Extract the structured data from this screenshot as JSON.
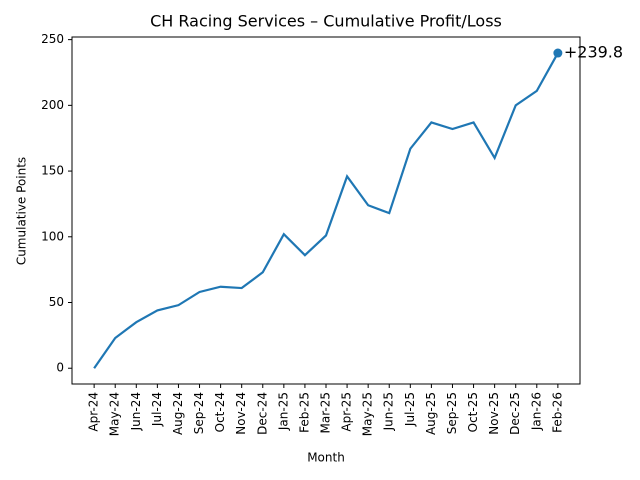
{
  "chart_data": {
    "type": "line",
    "title": "CH Racing Services – Cumulative Profit/Loss",
    "x_label": "Month",
    "y_label": "Cumulative Points",
    "categories": [
      "Apr-24",
      "May-24",
      "Jun-24",
      "Jul-24",
      "Aug-24",
      "Sep-24",
      "Oct-24",
      "Nov-24",
      "Dec-24",
      "Jan-25",
      "Feb-25",
      "Mar-25",
      "Apr-25",
      "May-25",
      "Jun-25",
      "Jul-25",
      "Aug-25",
      "Sep-25",
      "Oct-25",
      "Nov-25",
      "Dec-25",
      "Jan-26",
      "Feb-26"
    ],
    "values": [
      0,
      23,
      35,
      44,
      48,
      58,
      62,
      61,
      73,
      102,
      86,
      101,
      146,
      124,
      118,
      167,
      187,
      182,
      187,
      160,
      200,
      211,
      239.8
    ],
    "value_labels": [
      null,
      null,
      null,
      null,
      null,
      null,
      null,
      null,
      null,
      null,
      null,
      null,
      null,
      null,
      null,
      null,
      null,
      null,
      null,
      null,
      null,
      null,
      "+239.8"
    ],
    "color": "#1f77b4",
    "ylim": [
      -12,
      252
    ],
    "yticks": [
      0,
      50,
      100,
      150,
      200,
      250
    ],
    "grid": false
  }
}
